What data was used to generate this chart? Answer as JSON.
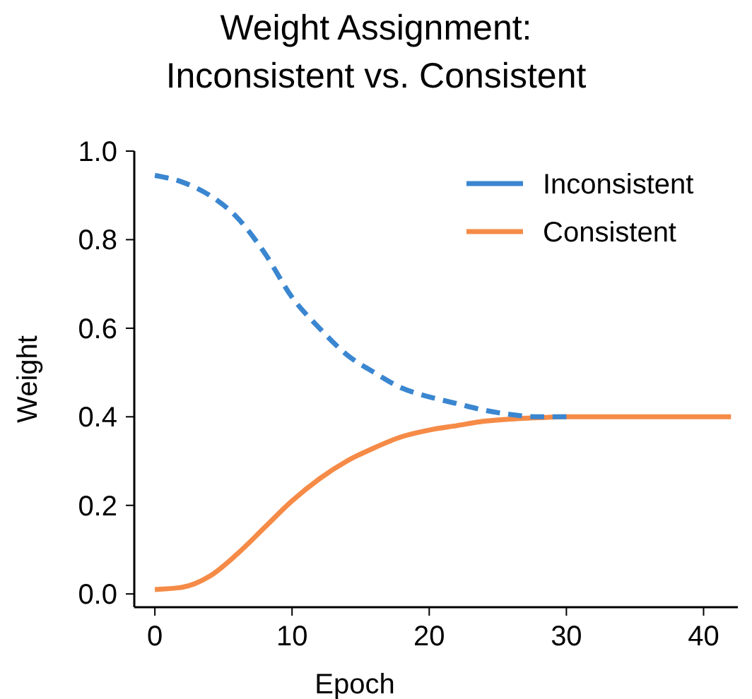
{
  "chart_data": {
    "type": "line",
    "title": "Weight Assignment:\nInconsistent vs. Consistent",
    "xlabel": "Epoch",
    "ylabel": "Weight",
    "x": [
      0,
      2,
      4,
      6,
      8,
      10,
      12,
      14,
      16,
      18,
      20,
      22,
      24,
      26,
      28,
      30,
      34,
      38,
      42
    ],
    "series": [
      {
        "name": "Inconsistent",
        "color": "#3a86d0",
        "line_style": "dashed",
        "values": [
          0.945,
          0.93,
          0.9,
          0.85,
          0.77,
          0.67,
          0.6,
          0.54,
          0.5,
          0.465,
          0.445,
          0.43,
          0.415,
          0.405,
          0.4,
          0.4,
          null,
          null,
          null
        ]
      },
      {
        "name": "Consistent",
        "color": "#f58b47",
        "line_style": "solid",
        "values": [
          0.01,
          0.015,
          0.04,
          0.09,
          0.15,
          0.21,
          0.26,
          0.3,
          0.33,
          0.355,
          0.37,
          0.38,
          0.39,
          0.395,
          0.398,
          0.4,
          0.4,
          0.4,
          0.4
        ]
      }
    ],
    "xlim": [
      -1.5,
      42.5
    ],
    "ylim": [
      -0.03,
      1.0
    ],
    "xticks": [
      0,
      10,
      20,
      30,
      40
    ],
    "yticks": [
      {
        "value": 0,
        "label": "0.0"
      },
      {
        "value": 0.2,
        "label": "0.2"
      },
      {
        "value": 0.4,
        "label": "0.4"
      },
      {
        "value": 0.6,
        "label": "0.6"
      },
      {
        "value": 0.8,
        "label": "0.8"
      },
      {
        "value": 1,
        "label": "1.0"
      }
    ],
    "grid": false,
    "legend": "top right"
  }
}
